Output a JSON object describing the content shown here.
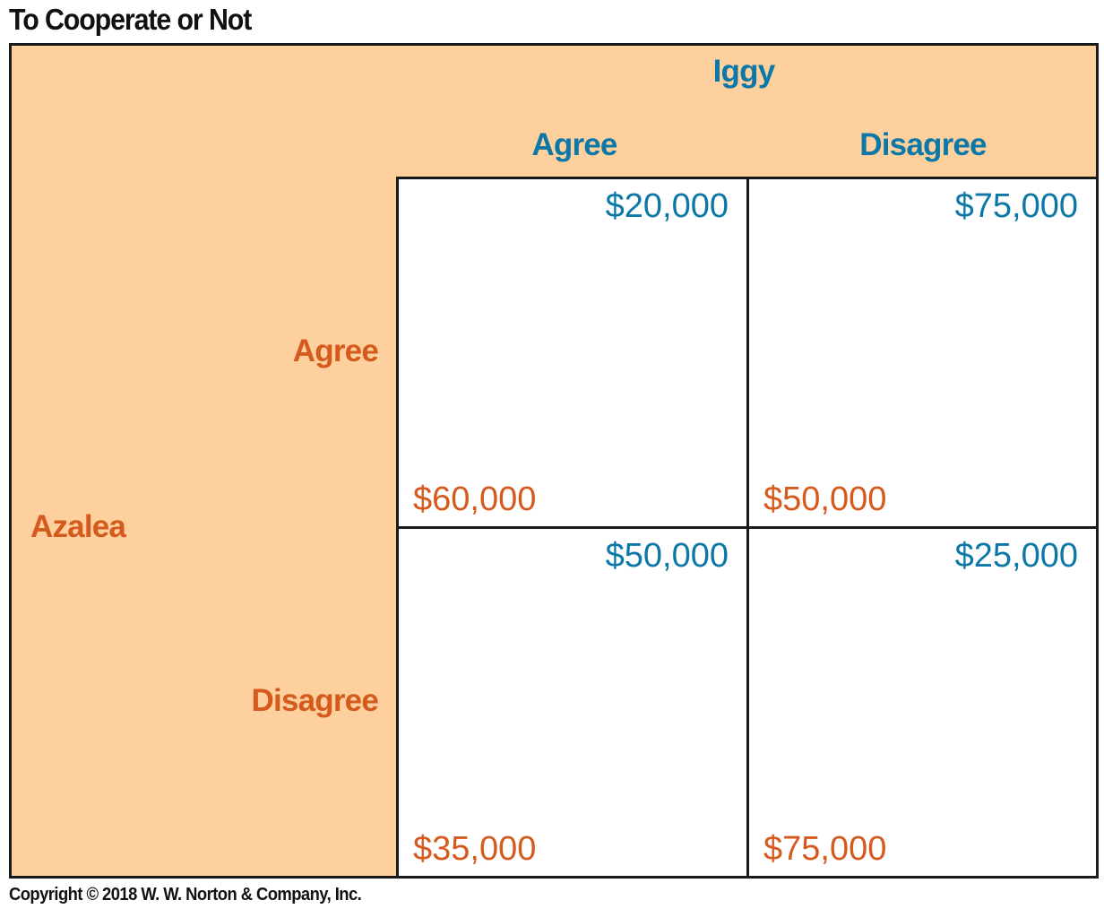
{
  "title": "To Cooperate or Not",
  "column_player": {
    "name": "Iggy",
    "strategies": [
      "Agree",
      "Disagree"
    ],
    "color": "#0b78a8"
  },
  "row_player": {
    "name": "Azalea",
    "strategies": [
      "Agree",
      "Disagree"
    ],
    "color": "#d55a1e"
  },
  "header_background": "#fdd09d",
  "payoffs": [
    [
      {
        "iggy": "$20,000",
        "azalea": "$60,000"
      },
      {
        "iggy": "$75,000",
        "azalea": "$50,000"
      }
    ],
    [
      {
        "iggy": "$50,000",
        "azalea": "$35,000"
      },
      {
        "iggy": "$25,000",
        "azalea": "$75,000"
      }
    ]
  ],
  "copyright": "Copyright © 2018 W. W. Norton & Company, Inc."
}
